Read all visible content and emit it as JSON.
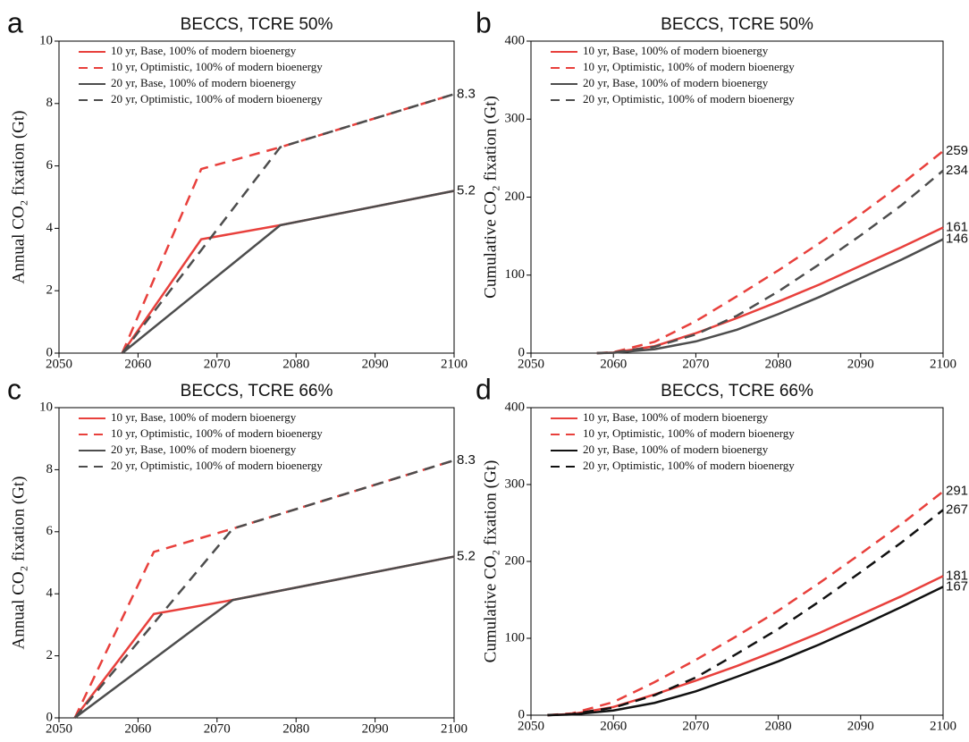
{
  "chart_data": [
    {
      "type": "line",
      "panel": "a",
      "title": "BECCS, TCRE 50%",
      "y_label": "Annual CO₂ fixation (Gt)",
      "x": [
        2058,
        2068,
        2078,
        2100
      ],
      "xlim": [
        2050,
        2100
      ],
      "xticks": [
        2050,
        2060,
        2070,
        2080,
        2090,
        2100
      ],
      "ylim": [
        0,
        10
      ],
      "yticks": [
        0,
        2,
        4,
        6,
        8,
        10
      ],
      "legend": "upper left",
      "series": [
        {
          "name": "10 yr, Base, 100% of modern bioenergy",
          "color": "#e8403c",
          "dash": false,
          "values": [
            0,
            3.65,
            4.1,
            5.2
          ]
        },
        {
          "name": "10 yr, Optimistic, 100% of modern bioenergy",
          "color": "#e8403c",
          "dash": true,
          "values": [
            0,
            5.9,
            6.6,
            8.3
          ]
        },
        {
          "name": "20 yr, Base, 100% of modern bioenergy",
          "color": "#4d4d4d",
          "dash": false,
          "values": [
            0,
            2.05,
            4.1,
            5.2
          ]
        },
        {
          "name": "20 yr, Optimistic, 100% of modern bioenergy",
          "color": "#4d4d4d",
          "dash": true,
          "values": [
            0,
            3.3,
            6.6,
            8.3
          ]
        }
      ],
      "end_labels": [
        1,
        0
      ]
    },
    {
      "type": "line",
      "panel": "b",
      "title": "BECCS, TCRE 50%",
      "y_label": "Cumulative CO₂ fixation (Gt)",
      "x": [
        2058,
        2060,
        2065,
        2070,
        2075,
        2080,
        2085,
        2090,
        2095,
        2100
      ],
      "xlim": [
        2050,
        2100
      ],
      "xticks": [
        2050,
        2060,
        2070,
        2080,
        2090,
        2100
      ],
      "ylim": [
        0,
        400
      ],
      "yticks": [
        0,
        100,
        200,
        300,
        400
      ],
      "legend": "upper left",
      "series": [
        {
          "name": "10 yr, Base, 100% of modern bioenergy",
          "color": "#e8403c",
          "dash": false,
          "values": [
            0,
            0.7,
            8.9,
            25.6,
            45,
            66,
            88,
            112,
            136,
            161
          ]
        },
        {
          "name": "10 yr, Optimistic, 100% of modern bioenergy",
          "color": "#e8403c",
          "dash": true,
          "values": [
            0,
            1.2,
            14.5,
            41,
            73,
            106,
            141,
            178,
            217,
            259
          ]
        },
        {
          "name": "20 yr, Base, 100% of modern bioenergy",
          "color": "#4d4d4d",
          "dash": false,
          "values": [
            0,
            0.4,
            5,
            15,
            30,
            50,
            72,
            96,
            120,
            146
          ]
        },
        {
          "name": "20 yr, Optimistic, 100% of modern bioenergy",
          "color": "#4d4d4d",
          "dash": true,
          "values": [
            0,
            0.7,
            8.1,
            24,
            48,
            79,
            114,
            151,
            190,
            234
          ]
        }
      ],
      "end_labels": [
        1,
        3,
        0,
        2
      ]
    },
    {
      "type": "line",
      "panel": "c",
      "title": "BECCS, TCRE 66%",
      "y_label": "Annual CO₂ fixation (Gt)",
      "x": [
        2052,
        2062,
        2072,
        2100
      ],
      "xlim": [
        2050,
        2100
      ],
      "xticks": [
        2050,
        2060,
        2070,
        2080,
        2090,
        2100
      ],
      "ylim": [
        0,
        10
      ],
      "yticks": [
        0,
        2,
        4,
        6,
        8,
        10
      ],
      "legend": "upper left",
      "series": [
        {
          "name": "10 yr, Base, 100% of modern bioenergy",
          "color": "#e8403c",
          "dash": false,
          "values": [
            0,
            3.35,
            3.8,
            5.2
          ]
        },
        {
          "name": "10 yr, Optimistic, 100% of modern bioenergy",
          "color": "#e8403c",
          "dash": true,
          "values": [
            0,
            5.35,
            6.1,
            8.3
          ]
        },
        {
          "name": "20 yr, Base, 100% of modern bioenergy",
          "color": "#4d4d4d",
          "dash": false,
          "values": [
            0,
            1.9,
            3.8,
            5.2
          ]
        },
        {
          "name": "20 yr, Optimistic, 100% of modern bioenergy",
          "color": "#4d4d4d",
          "dash": true,
          "values": [
            0,
            3.05,
            6.1,
            8.3
          ]
        }
      ],
      "end_labels": [
        1,
        0
      ]
    },
    {
      "type": "line",
      "panel": "d",
      "title": "BECCS, TCRE 66%",
      "y_label": "Cumulative CO₂ fixation (Gt)",
      "x": [
        2052,
        2055,
        2060,
        2065,
        2070,
        2075,
        2080,
        2085,
        2090,
        2095,
        2100
      ],
      "xlim": [
        2050,
        2100
      ],
      "xticks": [
        2050,
        2060,
        2070,
        2080,
        2090,
        2100
      ],
      "ylim": [
        0,
        400
      ],
      "yticks": [
        0,
        100,
        200,
        300,
        400
      ],
      "legend": "upper left",
      "series": [
        {
          "name": "10 yr, Base, 100% of modern bioenergy",
          "color": "#e8403c",
          "dash": false,
          "values": [
            0,
            1.5,
            10.7,
            27,
            45,
            64,
            85,
            107,
            131,
            155,
            181
          ]
        },
        {
          "name": "10 yr, Optimistic, 100% of modern bioenergy",
          "color": "#e8403c",
          "dash": true,
          "values": [
            0,
            2.4,
            17,
            43,
            72,
            103,
            136,
            172,
            210,
            249,
            291
          ]
        },
        {
          "name": "20 yr, Base, 100% of modern bioenergy",
          "color": "#111111",
          "dash": false,
          "values": [
            0,
            0.9,
            6.1,
            16,
            31,
            50,
            70,
            92,
            116,
            141,
            167
          ]
        },
        {
          "name": "20 yr, Optimistic, 100% of modern bioenergy",
          "color": "#111111",
          "dash": true,
          "values": [
            0,
            1.4,
            9.8,
            26,
            49,
            80,
            112,
            148,
            186,
            225,
            267
          ]
        }
      ],
      "end_labels": [
        1,
        3,
        0,
        2
      ]
    }
  ]
}
